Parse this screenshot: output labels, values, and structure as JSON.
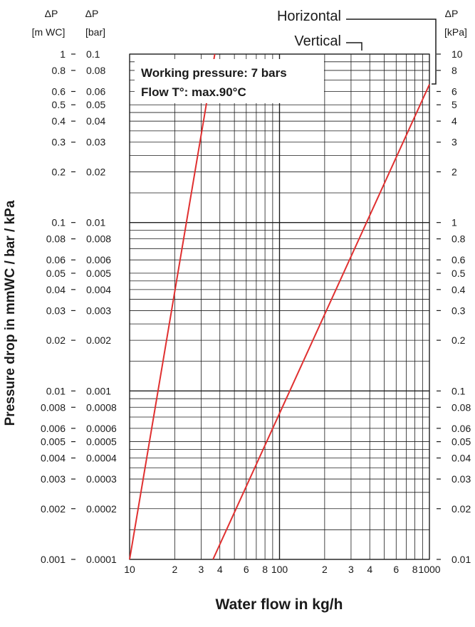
{
  "chart_data": {
    "type": "line",
    "x_scale": "log",
    "y_scale": "log",
    "xlabel": "Water flow in kg/h",
    "ylabel": "Pressure drop in mmWC / bar / kPa",
    "xlim": [
      10,
      1000
    ],
    "ylim_m_wc": [
      0.001,
      1
    ],
    "x_tick_labels": [
      {
        "value": 10,
        "label": "10"
      },
      {
        "value": 20,
        "label": "2"
      },
      {
        "value": 30,
        "label": "3"
      },
      {
        "value": 40,
        "label": "4"
      },
      {
        "value": 60,
        "label": "6"
      },
      {
        "value": 80,
        "label": "8"
      },
      {
        "value": 100,
        "label": "100"
      },
      {
        "value": 200,
        "label": "2"
      },
      {
        "value": 300,
        "label": "3"
      },
      {
        "value": 400,
        "label": "4"
      },
      {
        "value": 600,
        "label": "6"
      },
      {
        "value": 800,
        "label": "8"
      },
      {
        "value": 1000,
        "label": "1000"
      }
    ],
    "axes": {
      "m_wc": {
        "header": "ΔP",
        "unit": "[m WC]"
      },
      "bar": {
        "header": "ΔP",
        "unit": "[bar]"
      },
      "kpa": {
        "header": "ΔP",
        "unit": "[kPa]"
      }
    },
    "y_ticks": [
      {
        "value": 1,
        "m_wc": "1",
        "bar": "0.1",
        "kpa": "10"
      },
      {
        "value": 0.8,
        "m_wc": "0.8",
        "bar": "0.08",
        "kpa": "8"
      },
      {
        "value": 0.6,
        "m_wc": "0.6",
        "bar": "0.06",
        "kpa": "6"
      },
      {
        "value": 0.5,
        "m_wc": "0.5",
        "bar": "0.05",
        "kpa": "5"
      },
      {
        "value": 0.4,
        "m_wc": "0.4",
        "bar": "0.04",
        "kpa": "4"
      },
      {
        "value": 0.3,
        "m_wc": "0.3",
        "bar": "0.03",
        "kpa": "3"
      },
      {
        "value": 0.2,
        "m_wc": "0.2",
        "bar": "0.02",
        "kpa": "2"
      },
      {
        "value": 0.1,
        "m_wc": "0.1",
        "bar": "0.01",
        "kpa": "1"
      },
      {
        "value": 0.08,
        "m_wc": "0.08",
        "bar": "0.008",
        "kpa": "0.8"
      },
      {
        "value": 0.06,
        "m_wc": "0.06",
        "bar": "0.006",
        "kpa": "0.6"
      },
      {
        "value": 0.05,
        "m_wc": "0.05",
        "bar": "0.005",
        "kpa": "0.5"
      },
      {
        "value": 0.04,
        "m_wc": "0.04",
        "bar": "0.004",
        "kpa": "0.4"
      },
      {
        "value": 0.03,
        "m_wc": "0.03",
        "bar": "0.003",
        "kpa": "0.3"
      },
      {
        "value": 0.02,
        "m_wc": "0.02",
        "bar": "0.002",
        "kpa": "0.2"
      },
      {
        "value": 0.01,
        "m_wc": "0.01",
        "bar": "0.001",
        "kpa": "0.1"
      },
      {
        "value": 0.008,
        "m_wc": "0.008",
        "bar": "0.0008",
        "kpa": "0.08"
      },
      {
        "value": 0.006,
        "m_wc": "0.006",
        "bar": "0.0006",
        "kpa": "0.06"
      },
      {
        "value": 0.005,
        "m_wc": "0.005",
        "bar": "0.0005",
        "kpa": "0.05"
      },
      {
        "value": 0.004,
        "m_wc": "0.004",
        "bar": "0.0004",
        "kpa": "0.04"
      },
      {
        "value": 0.003,
        "m_wc": "0.003",
        "bar": "0.0003",
        "kpa": "0.03"
      },
      {
        "value": 0.002,
        "m_wc": "0.002",
        "bar": "0.0002",
        "kpa": "0.02"
      },
      {
        "value": 0.001,
        "m_wc": "0.001",
        "bar": "0.0001",
        "kpa": "0.01"
      }
    ],
    "annotations": [
      "Working pressure: 7 bars",
      "Flow T°: max.90°C"
    ],
    "series": [
      {
        "name": "Horizontal",
        "points": [
          {
            "x": 10,
            "y": 0.001
          },
          {
            "x": 37,
            "y": 1
          }
        ]
      },
      {
        "name": "Vertical",
        "points": [
          {
            "x": 36,
            "y": 0.001
          },
          {
            "x": 1000,
            "y": 0.66
          }
        ]
      }
    ],
    "grid": true,
    "colors": {
      "series": "#e03030",
      "grid": "#1a1a1a",
      "axis": "#1a1a1a"
    }
  }
}
